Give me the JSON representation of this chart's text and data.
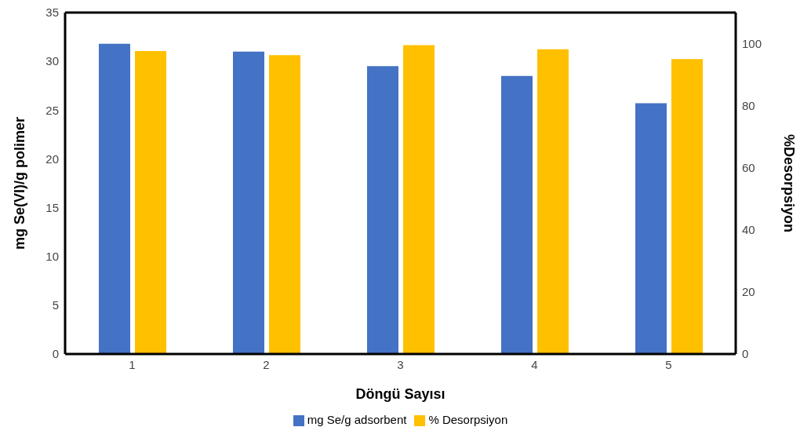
{
  "chart_data": {
    "type": "bar",
    "xlabel": "Döngü Sayısı",
    "ylabel": "mg Se(VI)/g polimer",
    "y2label": "%Desorpsiyon",
    "categories": [
      "1",
      "2",
      "3",
      "4",
      "5"
    ],
    "series": [
      {
        "name": "mg Se/g adsorbent",
        "color": "#4472c4",
        "values": [
          31.8,
          31.0,
          29.5,
          28.5,
          25.7
        ]
      },
      {
        "name": "% Desorpsiyon",
        "color": "#ffc000",
        "axis": "y2",
        "values": [
          97.6,
          96.3,
          99.5,
          98.2,
          95.0
        ]
      }
    ],
    "ylim": [
      0,
      35
    ],
    "yticks": [
      0,
      5,
      10,
      15,
      20,
      25,
      30,
      35
    ],
    "y2lim": [
      0,
      110
    ],
    "y2ticks": [
      0,
      20,
      40,
      60,
      80,
      100
    ],
    "legend": "bottom"
  }
}
